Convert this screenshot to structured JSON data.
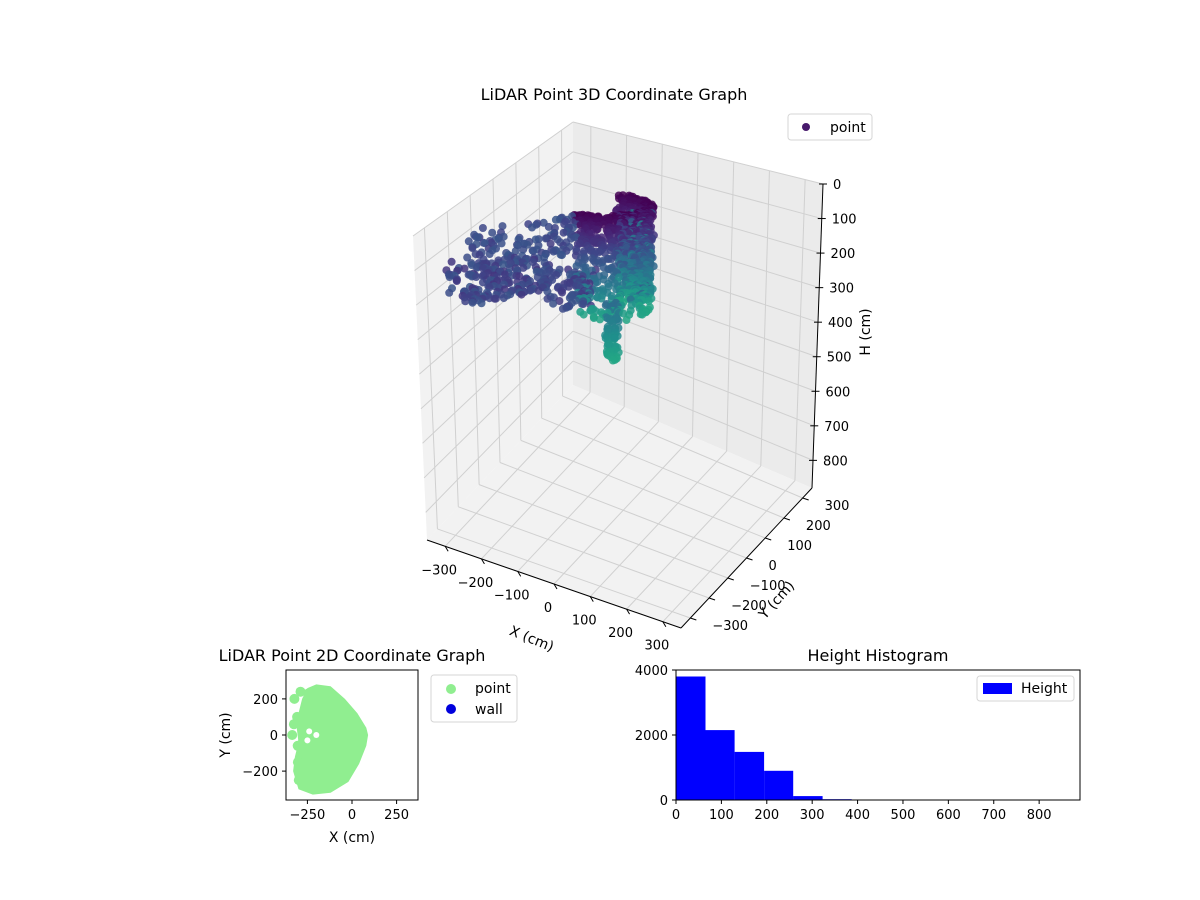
{
  "chart_data": [
    {
      "type": "scatter",
      "title": "LiDAR Point 3D Coordinate Graph",
      "xlabel": "X (cm)",
      "ylabel": "Y (cm)",
      "zlabel": "H (cm)",
      "x_ticks": [
        "−300",
        "−200",
        "−100",
        "0",
        "100",
        "200",
        "300"
      ],
      "y_ticks": [
        "−300",
        "−200",
        "−100",
        "0",
        "100",
        "200",
        "300"
      ],
      "z_ticks": [
        "0",
        "100",
        "200",
        "300",
        "400",
        "500",
        "600",
        "700",
        "800"
      ],
      "zlim": [
        0,
        880
      ],
      "z_inverted": true,
      "grid": true,
      "legend": {
        "position": "top-right",
        "entries": [
          {
            "label": "point",
            "color": "#481a6c"
          }
        ]
      },
      "colormap": "viridis"
    },
    {
      "type": "scatter",
      "title": "LiDAR Point 2D Coordinate Graph",
      "xlabel": "X (cm)",
      "ylabel": "Y (cm)",
      "xlim": [
        -370,
        370
      ],
      "ylim": [
        -360,
        360
      ],
      "x_ticks": [
        -250,
        0,
        250
      ],
      "y_ticks": [
        -200,
        0,
        200
      ],
      "x_tick_labels": [
        "−250",
        "0",
        "250"
      ],
      "y_tick_labels": [
        "−200",
        "0",
        "200"
      ],
      "legend": {
        "position": "outside-right",
        "entries": [
          {
            "label": "point",
            "color": "#90ee90"
          },
          {
            "label": "wall",
            "color": "#0000dd"
          }
        ]
      }
    },
    {
      "type": "bar",
      "title": "Height Histogram",
      "bin_edges": [
        0,
        65,
        129,
        194,
        258,
        323,
        387,
        452,
        516,
        581,
        645,
        710,
        774,
        839
      ],
      "values": [
        3800,
        2150,
        1480,
        900,
        120,
        25,
        5,
        2,
        1,
        0,
        0,
        0,
        0
      ],
      "xlim": [
        0,
        890
      ],
      "ylim": [
        0,
        4000
      ],
      "x_ticks": [
        0,
        100,
        200,
        300,
        400,
        500,
        600,
        700,
        800
      ],
      "y_ticks": [
        0,
        2000,
        4000
      ],
      "x_tick_labels": [
        "0",
        "100",
        "200",
        "300",
        "400",
        "500",
        "600",
        "700",
        "800"
      ],
      "y_tick_labels": [
        "0",
        "2000",
        "4000"
      ],
      "bar_color": "#0000ff",
      "legend": {
        "position": "top-right",
        "entries": [
          {
            "label": "Height",
            "color": "#0000ff"
          }
        ]
      }
    }
  ]
}
